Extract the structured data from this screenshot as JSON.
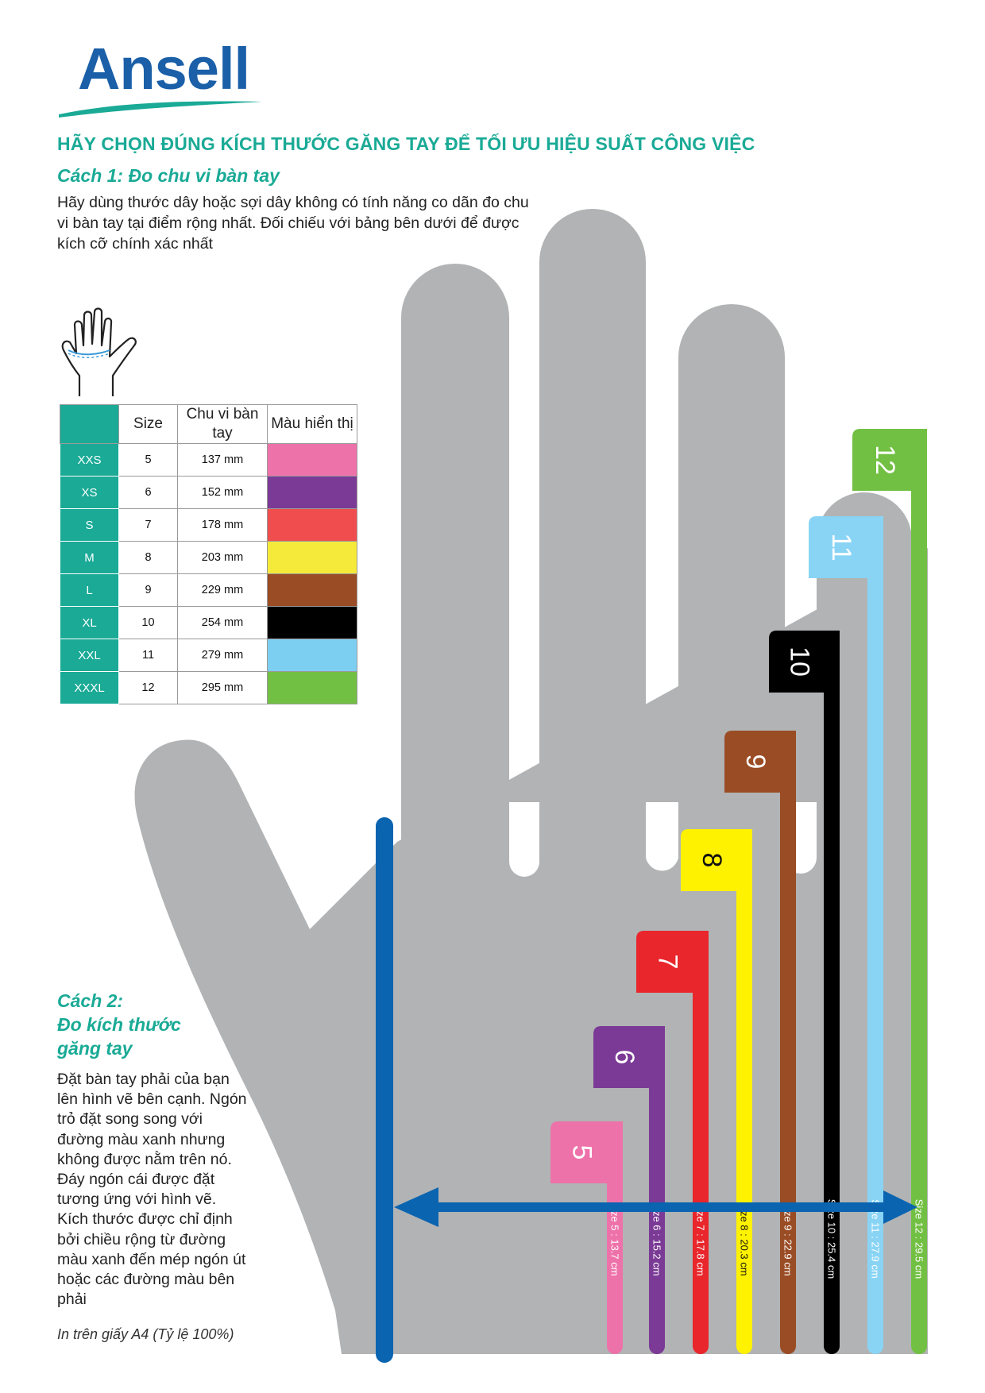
{
  "brand": {
    "name": "Ansell",
    "color": "#1a5fa8",
    "accent": "#1aaa96"
  },
  "headline": "HÃY CHỌN ĐÚNG KÍCH THƯỚC GĂNG TAY ĐỂ TỐI ƯU HIỆU SUẤT CÔNG VIỆC",
  "method1": {
    "title": "Cách 1: Đo chu vi bàn tay",
    "text": "Hãy dùng thước dây hoặc sợi dây không có tính năng co dãn đo chu vi bàn tay tại điểm rộng nhất. Đối chiếu với bảng bên dưới để được kích cỡ chính xác nhất",
    "icon": "hand-measure-icon"
  },
  "table": {
    "headers": {
      "size": "Size",
      "circumference": "Chu vi bàn tay",
      "color": "Màu hiển thị"
    },
    "rows": [
      {
        "code": "XXS",
        "size": "5",
        "circumference": "137 mm",
        "color": "#ee72aa"
      },
      {
        "code": "XS",
        "size": "6",
        "circumference": "152 mm",
        "color": "#7b3a96"
      },
      {
        "code": "S",
        "size": "7",
        "circumference": "178 mm",
        "color": "#f04e4e"
      },
      {
        "code": "M",
        "size": "8",
        "circumference": "203 mm",
        "color": "#f5e93a"
      },
      {
        "code": "L",
        "size": "9",
        "circumference": "229 mm",
        "color": "#9a4c25"
      },
      {
        "code": "XL",
        "size": "10",
        "circumference": "254 mm",
        "color": "#000000"
      },
      {
        "code": "XXL",
        "size": "11",
        "circumference": "279 mm",
        "color": "#7dcff2"
      },
      {
        "code": "XXXL",
        "size": "12",
        "circumference": "295 mm",
        "color": "#72c043"
      }
    ]
  },
  "method2": {
    "title_lines": [
      "Cách 2:",
      "Đo kích thước",
      "găng tay"
    ],
    "text": "Đặt bàn tay phải của bạn lên hình vẽ bên cạnh. Ngón trỏ đặt song song với đường màu xanh nhưng không được nằm trên nó. Đáy ngón cái được đặt tương ứng với hình vẽ. Kích thước được chỉ định bởi chiều rộng từ đường màu xanh đến mép ngón út hoặc các đường màu bên phải"
  },
  "note": "In trên giấy A4 (Tỷ lệ 100%)",
  "gauge": {
    "hand_color": "#b1b3b4",
    "reference_line_color": "#0a64b0",
    "arrow_color": "#0a64b0",
    "bars": [
      {
        "size": "5",
        "label": "Size 5 : 13.7 cm",
        "color": "#ee72aa",
        "text_color": "#ffffff"
      },
      {
        "size": "6",
        "label": "Size 6 : 15.2 cm",
        "color": "#7b3a96",
        "text_color": "#ffffff"
      },
      {
        "size": "7",
        "label": "Size 7 : 17.8 cm",
        "color": "#e8262c",
        "text_color": "#ffffff"
      },
      {
        "size": "8",
        "label": "Size 8 : 20.3 cm",
        "color": "#fff200",
        "text_color": "#111111"
      },
      {
        "size": "9",
        "label": "Size 9 : 22.9 cm",
        "color": "#9a4c25",
        "text_color": "#ffffff"
      },
      {
        "size": "10",
        "label": "Size 10 : 25.4 cm",
        "color": "#000000",
        "text_color": "#ffffff"
      },
      {
        "size": "11",
        "label": "Size 11 : 27.9 cm",
        "color": "#89d4f5",
        "text_color": "#ffffff"
      },
      {
        "size": "12",
        "label": "Size 12 : 29.5 cm",
        "color": "#72c043",
        "text_color": "#ffffff"
      }
    ]
  }
}
